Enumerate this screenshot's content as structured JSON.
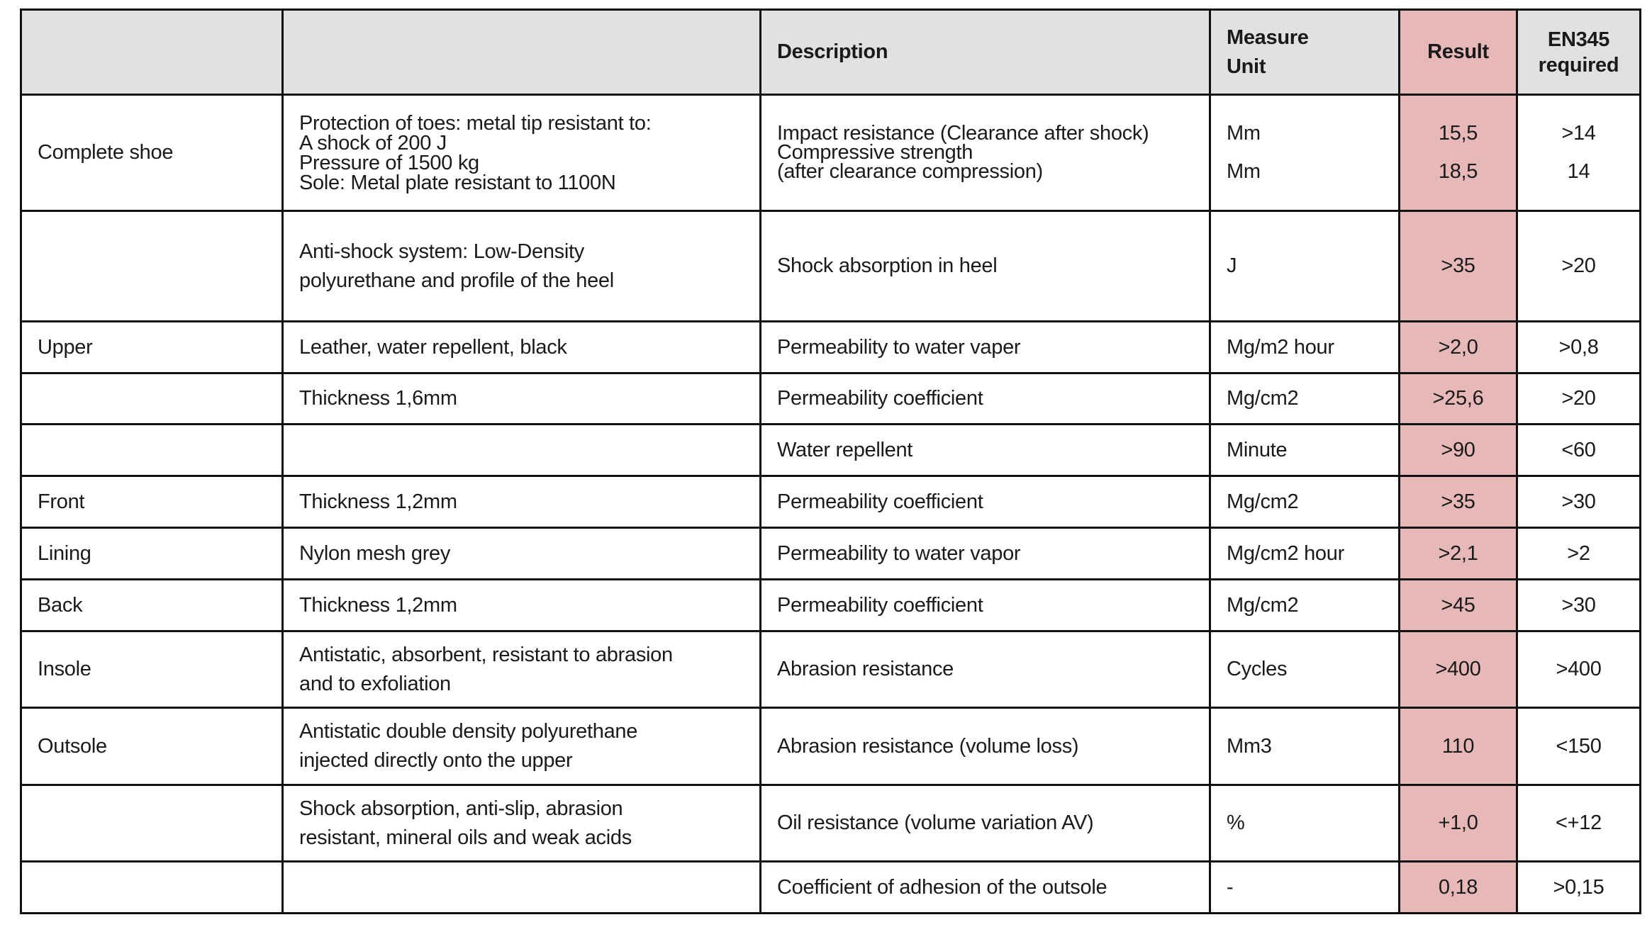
{
  "header": {
    "col1": "",
    "col2": "",
    "description": "Description",
    "measure_unit": [
      "Measure",
      "Unit"
    ],
    "result": "Result",
    "required": [
      "EN345",
      "required"
    ]
  },
  "colors": {
    "header_bg": "#e1e1e1",
    "result_bg": "#e6b8b7"
  },
  "rows": [
    {
      "part": [
        "Complete shoe"
      ],
      "material": [
        "Protection of toes: metal tip resistant to:",
        "A shock of 200 J",
        "Pressure of 1500 kg",
        "Sole: Metal plate resistant to 1100N"
      ],
      "description": [
        "Impact resistance (Clearance after shock)",
        "Compressive strength",
        "(after clearance compression)"
      ],
      "unit": [
        "Mm",
        "",
        "Mm"
      ],
      "result": [
        "15,5",
        "",
        "18,5"
      ],
      "required": [
        ">14",
        "",
        "14"
      ]
    },
    {
      "part": [
        ""
      ],
      "material": [
        "Anti-shock system: Low-Density",
        "polyurethane and profile of the heel"
      ],
      "description": [
        "Shock absorption in heel"
      ],
      "unit": [
        "J"
      ],
      "result": [
        ">35"
      ],
      "required": [
        ">20"
      ]
    },
    {
      "part": [
        "Upper"
      ],
      "material": [
        "Leather, water repellent, black"
      ],
      "description": [
        "Permeability to water vaper"
      ],
      "unit": [
        "Mg/m2 hour"
      ],
      "result": [
        ">2,0"
      ],
      "required": [
        ">0,8"
      ]
    },
    {
      "part": [
        ""
      ],
      "material": [
        "Thickness 1,6mm"
      ],
      "description": [
        "Permeability coefficient"
      ],
      "unit": [
        "Mg/cm2"
      ],
      "result": [
        ">25,6"
      ],
      "required": [
        ">20"
      ]
    },
    {
      "part": [
        ""
      ],
      "material": [
        ""
      ],
      "description": [
        "Water repellent"
      ],
      "unit": [
        "Minute"
      ],
      "result": [
        ">90"
      ],
      "required": [
        "<60"
      ]
    },
    {
      "part": [
        "Front"
      ],
      "material": [
        "Thickness 1,2mm"
      ],
      "description": [
        "Permeability coefficient"
      ],
      "unit": [
        "Mg/cm2"
      ],
      "result": [
        ">35"
      ],
      "required": [
        ">30"
      ]
    },
    {
      "part": [
        "Lining"
      ],
      "material": [
        "Nylon mesh grey"
      ],
      "description": [
        "Permeability to water vapor"
      ],
      "unit": [
        "Mg/cm2 hour"
      ],
      "result": [
        ">2,1"
      ],
      "required": [
        ">2"
      ]
    },
    {
      "part": [
        "Back"
      ],
      "material": [
        "Thickness 1,2mm"
      ],
      "description": [
        "Permeability coefficient"
      ],
      "unit": [
        "Mg/cm2"
      ],
      "result": [
        ">45"
      ],
      "required": [
        ">30"
      ]
    },
    {
      "part": [
        "Insole"
      ],
      "material": [
        "Antistatic, absorbent, resistant to abrasion",
        "and to exfoliation"
      ],
      "description": [
        "Abrasion resistance"
      ],
      "unit": [
        "Cycles"
      ],
      "result": [
        ">400"
      ],
      "required": [
        ">400"
      ]
    },
    {
      "part": [
        "Outsole"
      ],
      "material": [
        "Antistatic double density polyurethane",
        "injected directly onto the upper"
      ],
      "description": [
        "Abrasion resistance (volume loss)"
      ],
      "unit": [
        "Mm3"
      ],
      "result": [
        "110"
      ],
      "required": [
        "<150"
      ]
    },
    {
      "part": [
        ""
      ],
      "material": [
        "Shock absorption, anti-slip, abrasion",
        "resistant, mineral oils and weak acids"
      ],
      "description": [
        "Oil resistance (volume variation AV)"
      ],
      "unit": [
        "%"
      ],
      "result": [
        "+1,0"
      ],
      "required": [
        "<+12"
      ]
    },
    {
      "part": [
        ""
      ],
      "material": [
        ""
      ],
      "description": [
        "Coefficient of adhesion of the outsole"
      ],
      "unit": [
        "-"
      ],
      "result": [
        "0,18"
      ],
      "required": [
        ">0,15"
      ]
    }
  ]
}
